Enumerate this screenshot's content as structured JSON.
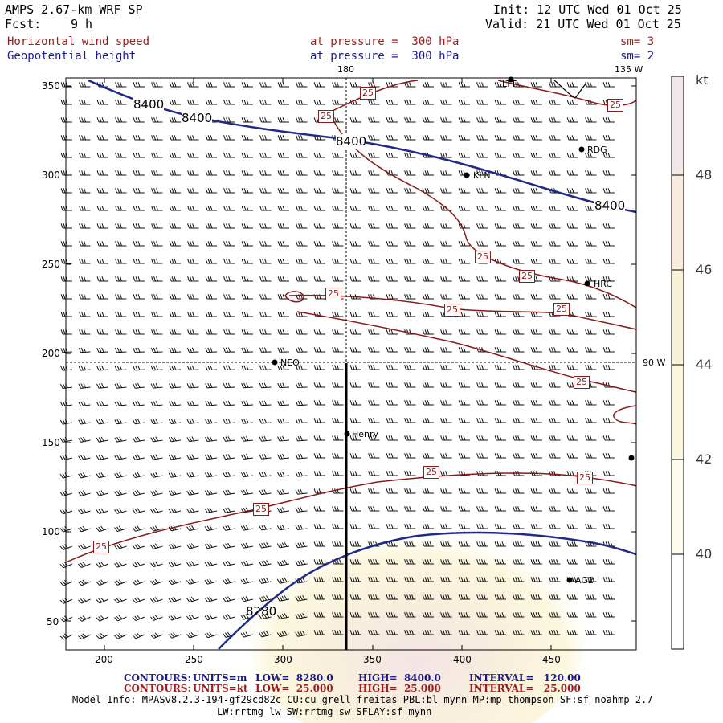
{
  "header": {
    "model_title": "AMPS 2.67-km WRF SP",
    "forecast_label": "Fcst:",
    "forecast_hours": "9 h",
    "init": "Init: 12 UTC Wed 01 Oct 25",
    "valid": "Valid: 21 UTC Wed 01 Oct 25",
    "field1_name": "Horizontal wind speed",
    "field1_level": "at pressure =  300 hPa",
    "field1_smooth": "sm= 3",
    "field2_name": "Geopotential height",
    "field2_level": "at pressure =  300 hPa",
    "field2_smooth": "sm= 2"
  },
  "map": {
    "x_ticks": [
      "200",
      "250",
      "300",
      "350",
      "400",
      "450"
    ],
    "y_ticks": [
      "350",
      "300",
      "250",
      "200",
      "150",
      "100",
      "50"
    ],
    "meridian_labels": [
      "180",
      "135 W",
      "90 W"
    ],
    "stations": [
      "LTT",
      "RDG",
      "KLN",
      "HRC",
      "NEO",
      "Henry",
      "AG2"
    ],
    "height_contour_labels": [
      "8400",
      "8400",
      "8400",
      "8400",
      "8280"
    ],
    "speed_contour_label": "25",
    "colors": {
      "height_contour": "#1f2a8a",
      "speed_contour": "#8b1a1a",
      "gridline": "#000000"
    }
  },
  "colorbar": {
    "unit": "kt",
    "ticks": [
      "48",
      "46",
      "44",
      "42",
      "40"
    ],
    "colors": [
      "#f2e6e8",
      "#f7ecde",
      "#f8f1d6",
      "#fcf7dc",
      "#fffcef",
      "#ffffff"
    ]
  },
  "footer": {
    "contours_label": "CONTOURS:",
    "row1": {
      "units": "UNITS=m",
      "low": "LOW=  8280.0",
      "high": "HIGH=  8400.0",
      "interval": "INTERVAL=   120.00"
    },
    "row2": {
      "units": "UNITS=kt",
      "low": "LOW=  25.000",
      "high": "HIGH=  25.000",
      "interval": "INTERVAL=   25.000"
    },
    "model_info_1": "Model Info: MPASv8.2.3-194-gf29cd82c CU:cu_grell_freitas PBL:bl_mynn MP:mp_thompson SF:sf_noahmp 2.7",
    "model_info_2": "LW:rrtmg_lw SW:rrtmg_sw SFLAY:sf_mynn"
  }
}
